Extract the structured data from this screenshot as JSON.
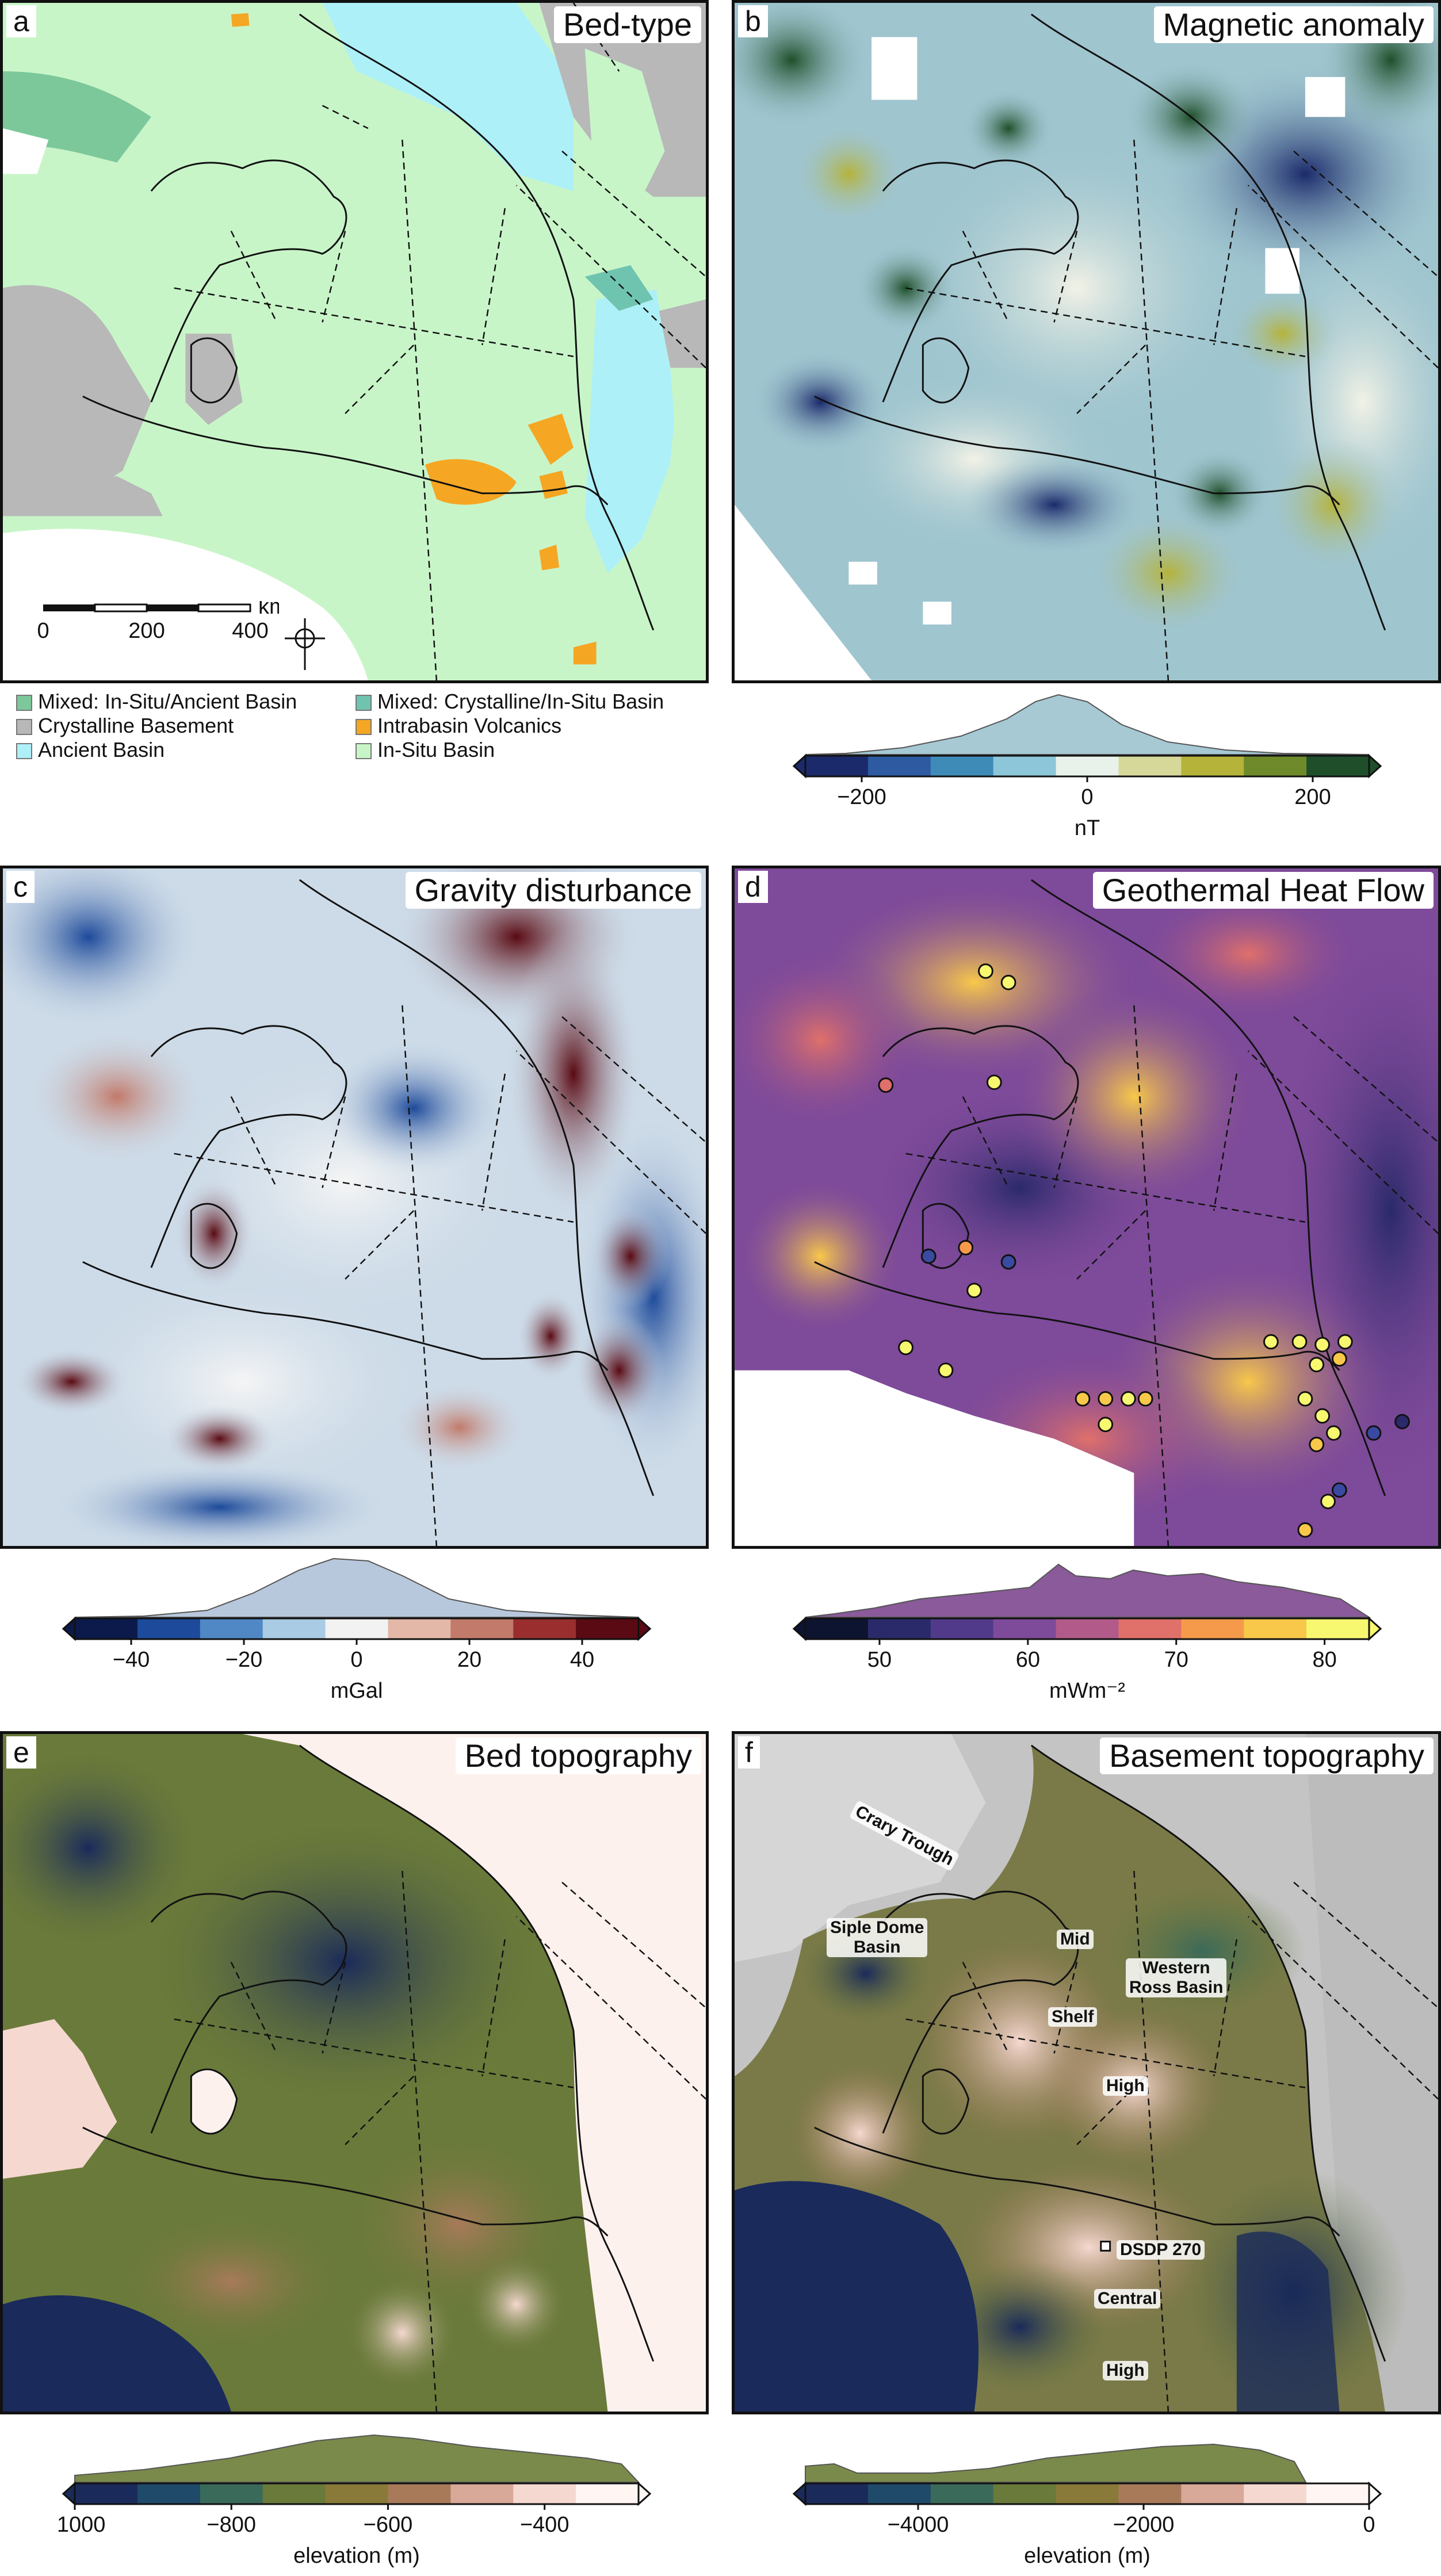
{
  "figure": {
    "panels": [
      {
        "letter": "a",
        "title": "Bed-type"
      },
      {
        "letter": "b",
        "title": "Magnetic anomaly"
      },
      {
        "letter": "c",
        "title": "Gravity disturbance"
      },
      {
        "letter": "d",
        "title": "Geothermal Heat Flow"
      },
      {
        "letter": "e",
        "title": "Bed topography"
      },
      {
        "letter": "f",
        "title": "Basement topography"
      }
    ]
  },
  "legend_a": {
    "items": [
      {
        "label": "Mixed: In-Situ/Ancient Basin",
        "color": "#7cc89a"
      },
      {
        "label": "Crystalline Basement",
        "color": "#b8b8b8"
      },
      {
        "label": "Ancient Basin",
        "color": "#aef0f8"
      },
      {
        "label": "Mixed: Crystalline/In-Situ Basin",
        "color": "#6fc4b0"
      },
      {
        "label": "Intrabasin Volcanics",
        "color": "#f5a623"
      },
      {
        "label": "In-Situ Basin",
        "color": "#c8f5c8"
      }
    ]
  },
  "scalebar": {
    "unit": "km",
    "ticks": [
      "0",
      "200",
      "400"
    ]
  },
  "colorbars": {
    "magnetic": {
      "unit": "nT",
      "ticks": [
        "−200",
        "0",
        "200"
      ],
      "min": -250,
      "max": 250,
      "tick_values": [
        -200,
        0,
        200
      ],
      "colors": [
        "#1b2a6b",
        "#2d5aa0",
        "#3f8bb8",
        "#8cc6d8",
        "#e8f1ea",
        "#d6d89a",
        "#b5b33a",
        "#6f8a2a",
        "#1f4f2a"
      ]
    },
    "gravity": {
      "unit": "mGal",
      "ticks": [
        "−40",
        "−20",
        "0",
        "20",
        "40"
      ],
      "min": -50,
      "max": 50,
      "tick_values": [
        -40,
        -20,
        0,
        20,
        40
      ],
      "colors": [
        "#0b1a4a",
        "#1d4a9a",
        "#4f88c4",
        "#a9cbe3",
        "#f2f2f2",
        "#e3b8a8",
        "#c27a6a",
        "#9a2e2e",
        "#5a0a12"
      ]
    },
    "heatflow": {
      "unit": "mWm⁻²",
      "ticks": [
        "50",
        "60",
        "70",
        "80"
      ],
      "min": 45,
      "max": 83,
      "tick_values": [
        50,
        60,
        70,
        80
      ],
      "colors": [
        "#0d1430",
        "#2a2a6a",
        "#523a8a",
        "#7e4a9a",
        "#b25a8a",
        "#e0706a",
        "#f59a4a",
        "#f8c84a",
        "#f8f870"
      ]
    },
    "bed": {
      "unit": "elevation (m)",
      "ticks": [
        "−1000",
        "−800",
        "−600",
        "−400"
      ],
      "min": -1000,
      "max": -280,
      "tick_values": [
        -1000,
        -800,
        -600,
        -400
      ],
      "colors": [
        "#1a2a5a",
        "#1f4a6a",
        "#3a6a5a",
        "#6a7a3a",
        "#8a7a3a",
        "#a87a5a",
        "#d8a898",
        "#f5d8d0",
        "#fff5f2"
      ]
    },
    "basement": {
      "unit": "elevation (m)",
      "ticks": [
        "−4000",
        "−2000",
        "0"
      ],
      "min": -5000,
      "max": 0,
      "tick_values": [
        -4000,
        -2000,
        0
      ],
      "colors": [
        "#1a2a5a",
        "#1f4a6a",
        "#3a6a5a",
        "#6a7a3a",
        "#8a7a3a",
        "#a87a5a",
        "#d8a898",
        "#f5d8d0",
        "#fff5f2"
      ]
    }
  },
  "labels_f": [
    {
      "text": "Crary Trough",
      "name": "crary-trough"
    },
    {
      "text": "Siple Dome\nBasin",
      "name": "siple-dome-basin"
    },
    {
      "text": "Mid",
      "name": "mid"
    },
    {
      "text": "Western\nRoss Basin",
      "name": "western-ross-basin"
    },
    {
      "text": "Shelf",
      "name": "shelf"
    },
    {
      "text": "High",
      "name": "high-1"
    },
    {
      "text": "DSDP 270",
      "name": "dsdp-270"
    },
    {
      "text": "Central",
      "name": "central"
    },
    {
      "text": "High",
      "name": "high-2"
    }
  ]
}
